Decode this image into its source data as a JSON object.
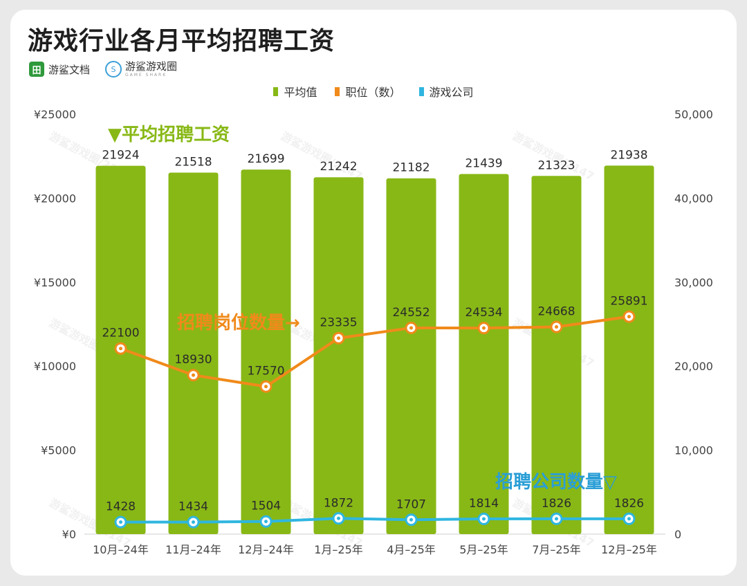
{
  "title": "游戏行业各月平均招聘工资",
  "brands": [
    {
      "icon": "田",
      "name": "游鲨文档"
    },
    {
      "icon": "S",
      "name": "游鲨游戏圈",
      "sub": "GAME SHARK"
    }
  ],
  "colors": {
    "bar": "#88b816",
    "positions": "#f08a1a",
    "companies": "#2fb6e0",
    "annotation_blue": "#2a9ed6"
  },
  "annotations": {
    "salary": "▼平均招聘工资",
    "positions": "招聘岗位数量→",
    "companies": "招聘公司数量▽"
  },
  "watermark": "游鲨游戏圈/2147",
  "chart_data": {
    "type": "bar",
    "categories": [
      "10月–24年",
      "11月–24年",
      "12月–24年",
      "1月–25年",
      "4月–25年",
      "5月–25年",
      "7月–25年",
      "12月–25年"
    ],
    "series": [
      {
        "name": "平均值",
        "type": "bar",
        "axis": "left",
        "values": [
          21924,
          21518,
          21699,
          21242,
          21182,
          21439,
          21323,
          21938
        ]
      },
      {
        "name": "职位（数）",
        "type": "line",
        "axis": "right",
        "values": [
          22100,
          18930,
          17570,
          23335,
          24552,
          24534,
          24668,
          25891
        ]
      },
      {
        "name": "游戏公司",
        "type": "line",
        "axis": "right",
        "values": [
          1428,
          1434,
          1504,
          1872,
          1707,
          1814,
          1826,
          1826
        ]
      }
    ],
    "y_left": {
      "ylim": [
        0,
        25000
      ],
      "ticks": [
        0,
        5000,
        10000,
        15000,
        20000,
        25000
      ],
      "tick_labels": [
        "¥0",
        "¥5000",
        "¥10000",
        "¥15000",
        "¥20000",
        "¥25000"
      ]
    },
    "y_right": {
      "ylim": [
        0,
        50000
      ],
      "ticks": [
        0,
        10000,
        20000,
        30000,
        40000,
        50000
      ],
      "tick_labels": [
        "0",
        "10,000",
        "20,000",
        "30,000",
        "40,000",
        "50,000"
      ]
    },
    "legend_position": "top-center"
  }
}
